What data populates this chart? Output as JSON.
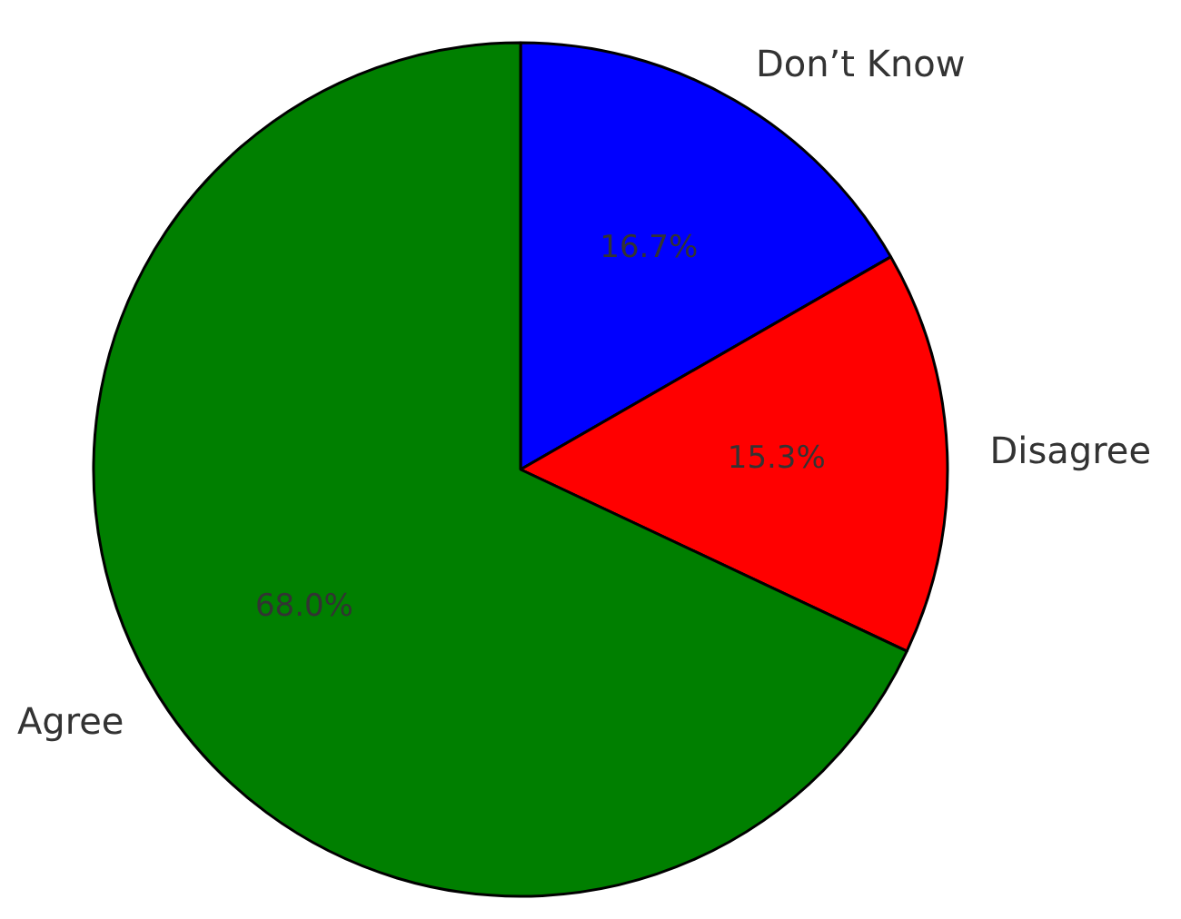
{
  "chart_data": {
    "type": "pie",
    "categories": [
      "Don’t Know",
      "Disagree",
      "Agree"
    ],
    "values": [
      16.7,
      15.3,
      68.0
    ],
    "colors": [
      "#0000ff",
      "#ff0000",
      "#007f00"
    ],
    "value_labels": [
      "16.7%",
      "15.3%",
      "68.0%"
    ]
  }
}
